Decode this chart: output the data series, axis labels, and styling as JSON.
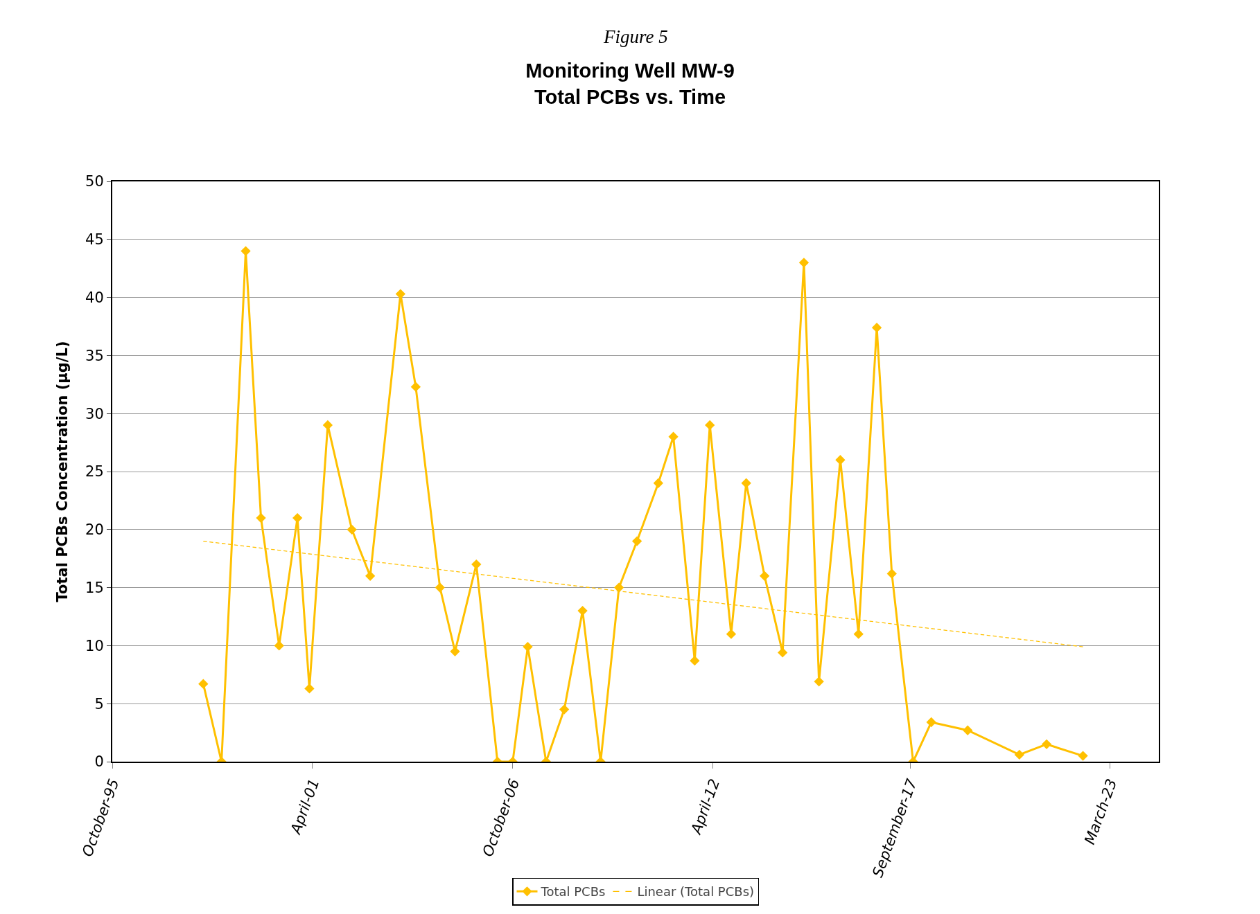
{
  "chart_data": {
    "type": "line",
    "title": "Monitoring Well MW-9\nTotal PCBs vs. Time",
    "annotations": [
      "Figure 5"
    ],
    "ylabel": "Total PCBs Concentration (µg/L)",
    "xlim": [
      "1995-10-01",
      "2024-07-01"
    ],
    "xticks": [
      {
        "value": "1995-10-01",
        "label": "October-95"
      },
      {
        "value": "2001-04-01",
        "label": "April-01"
      },
      {
        "value": "2006-10-01",
        "label": "October-06"
      },
      {
        "value": "2012-04-01",
        "label": "April-12"
      },
      {
        "value": "2017-09-01",
        "label": "September-17"
      },
      {
        "value": "2023-03-01",
        "label": "March-23"
      }
    ],
    "ylim": [
      0,
      50
    ],
    "yticks": [
      0,
      5,
      10,
      15,
      20,
      25,
      30,
      35,
      40,
      45,
      50
    ],
    "grid": "y",
    "legend": "bottom",
    "marker": "diamond",
    "series": [
      {
        "name": "Total PCBs",
        "color": "#ffc000",
        "x": [
          "1998-04",
          "1998-10",
          "1999-06",
          "1999-11",
          "2000-05",
          "2000-11",
          "2001-03",
          "2001-09",
          "2002-05",
          "2002-11",
          "2003-09",
          "2004-02",
          "2004-10",
          "2005-03",
          "2005-10",
          "2006-05",
          "2006-10",
          "2007-03",
          "2007-09",
          "2008-03",
          "2008-09",
          "2009-03",
          "2009-09",
          "2010-03",
          "2010-10",
          "2011-03",
          "2011-10",
          "2012-03",
          "2012-10",
          "2013-03",
          "2013-09",
          "2014-03",
          "2014-10",
          "2015-03",
          "2015-10",
          "2016-04",
          "2016-10",
          "2017-03",
          "2017-10",
          "2018-04",
          "2019-04",
          "2020-09",
          "2021-06",
          "2022-06"
        ],
        "values": [
          6.7,
          0,
          44,
          21,
          10,
          21,
          6.3,
          29,
          20,
          16,
          40.3,
          32.3,
          15,
          9.5,
          17,
          0,
          0,
          9.9,
          0,
          4.5,
          13,
          0,
          15,
          19,
          24,
          28,
          8.7,
          29,
          11,
          24,
          16,
          9.4,
          43,
          6.9,
          26,
          11,
          37.4,
          16.2,
          0,
          3.4,
          2.7,
          0.6,
          1.5,
          0.5
        ]
      },
      {
        "name": "Linear (Total PCBs)",
        "color": "#ffc000",
        "type": "line",
        "marker": "none",
        "line_style": "dashed",
        "x": [
          "1998-04",
          "2022-06"
        ],
        "values": [
          19.0,
          9.9
        ]
      }
    ]
  }
}
